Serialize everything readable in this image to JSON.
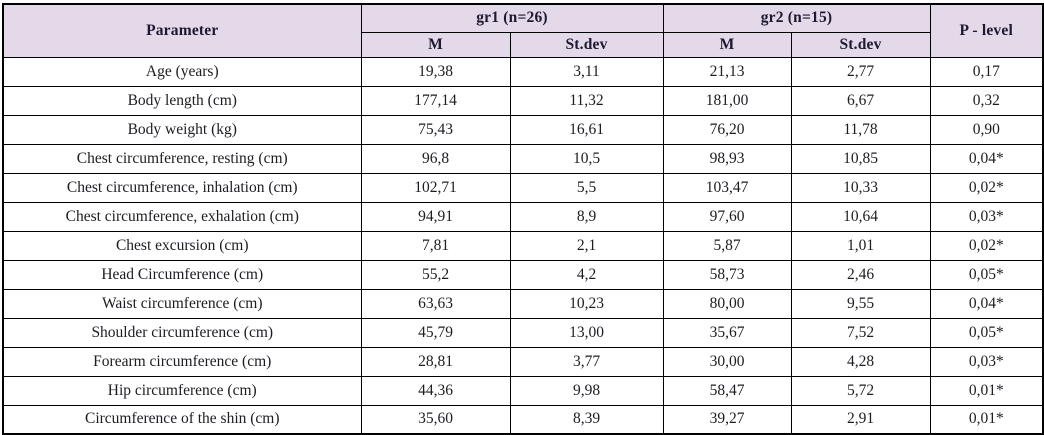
{
  "table": {
    "header": {
      "parameter": "Parameter",
      "group1": "gr1 (n=26)",
      "group2": "gr2 (n=15)",
      "p_level": "P - level",
      "sub": [
        "M",
        "St.dev",
        "M",
        "St.dev"
      ]
    },
    "columns": [
      "Parameter",
      "gr1 M",
      "gr1 St.dev",
      "gr2 M",
      "gr2 St.dev",
      "P - level"
    ],
    "rows": [
      [
        "Age (years)",
        "19,38",
        "3,11",
        "21,13",
        "2,77",
        "0,17"
      ],
      [
        "Body length (cm)",
        "177,14",
        "11,32",
        "181,00",
        "6,67",
        "0,32"
      ],
      [
        "Body weight (kg)",
        "75,43",
        "16,61",
        "76,20",
        "11,78",
        "0,90"
      ],
      [
        "Chest circumference, resting (cm)",
        "96,8",
        "10,5",
        "98,93",
        "10,85",
        "0,04*"
      ],
      [
        "Chest circumference, inhalation (cm)",
        "102,71",
        "5,5",
        "103,47",
        "10,33",
        "0,02*"
      ],
      [
        "Chest circumference, exhalation (cm)",
        "94,91",
        "8,9",
        "97,60",
        "10,64",
        "0,03*"
      ],
      [
        "Chest excursion (cm)",
        "7,81",
        "2,1",
        "5,87",
        "1,01",
        "0,02*"
      ],
      [
        "Head Circumference (cm)",
        "55,2",
        "4,2",
        "58,73",
        "2,46",
        "0,05*"
      ],
      [
        "Waist circumference (cm)",
        "63,63",
        "10,23",
        "80,00",
        "9,55",
        "0,04*"
      ],
      [
        "Shoulder circumference (cm)",
        "45,79",
        "13,00",
        "35,67",
        "7,52",
        "0,05*"
      ],
      [
        "Forearm circumference (cm)",
        "28,81",
        "3,77",
        "30,00",
        "4,28",
        "0,03*"
      ],
      [
        "Hip circumference (cm)",
        "44,36",
        "9,98",
        "58,47",
        "5,72",
        "0,01*"
      ],
      [
        "Circumference of the shin (cm)",
        "35,60",
        "8,39",
        "39,27",
        "2,91",
        "0,01*"
      ]
    ]
  },
  "colors": {
    "header_bg": "#e3d9e9",
    "border": "#000000",
    "header_text": "#1e1930",
    "body_text": "#1c1c22"
  }
}
